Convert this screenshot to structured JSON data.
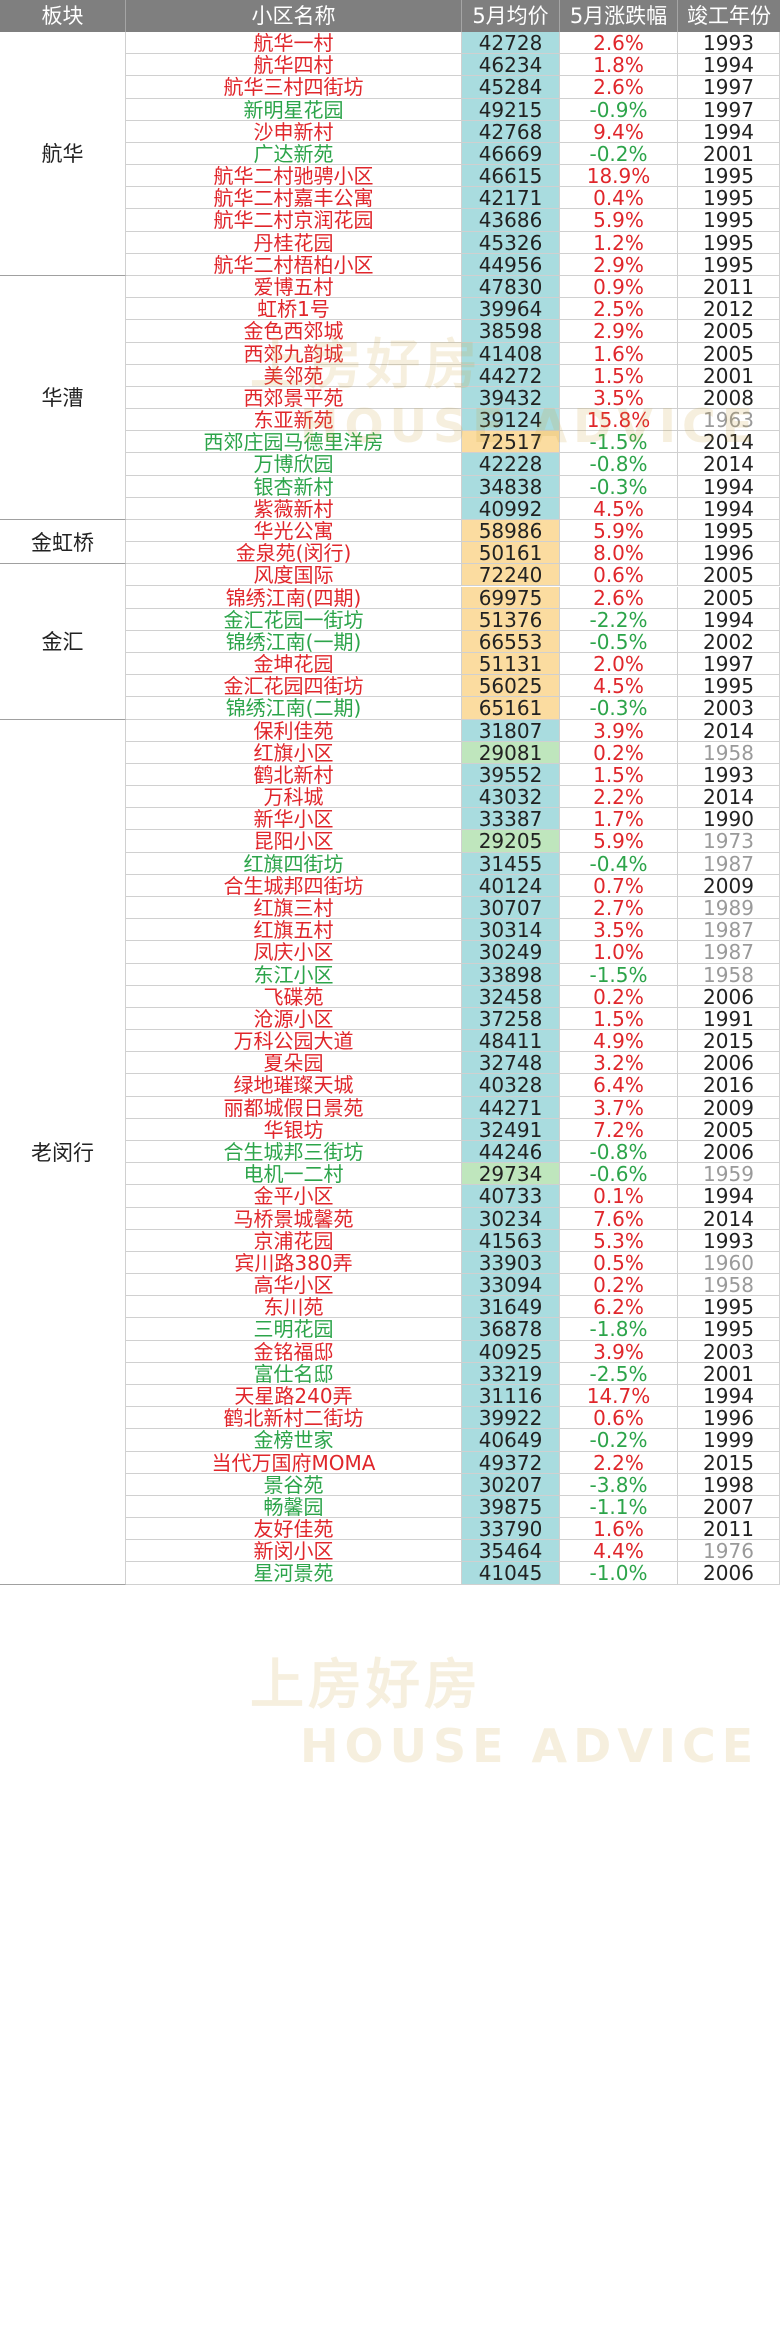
{
  "headers": [
    "板块",
    "小区名称",
    "5月均价",
    "5月涨跌幅",
    "竣工年份"
  ],
  "colors": {
    "header_bg": "#7f7f7f",
    "price_col": "#a9dcdf",
    "price_high": "#fbdca0",
    "price_low": "#bfe6bd",
    "up": "#e0262b",
    "down": "#2ca44a",
    "old_year": "#9a9a9a"
  },
  "blocks": [
    {
      "name": "航华",
      "rows": [
        {
          "name": "航华一村",
          "price": "42728",
          "change": "2.6%",
          "dir": "up",
          "year": "1993"
        },
        {
          "name": "航华四村",
          "price": "46234",
          "change": "1.8%",
          "dir": "up",
          "year": "1994"
        },
        {
          "name": "航华三村四街坊",
          "price": "45284",
          "change": "2.6%",
          "dir": "up",
          "year": "1997"
        },
        {
          "name": "新明星花园",
          "price": "49215",
          "change": "-0.9%",
          "dir": "down",
          "year": "1997"
        },
        {
          "name": "沙申新村",
          "price": "42768",
          "change": "9.4%",
          "dir": "up",
          "year": "1994"
        },
        {
          "name": "广达新苑",
          "price": "46669",
          "change": "-0.2%",
          "dir": "down",
          "year": "2001"
        },
        {
          "name": "航华二村驰骋小区",
          "price": "46615",
          "change": "18.9%",
          "dir": "up",
          "year": "1995"
        },
        {
          "name": "航华二村嘉丰公寓",
          "price": "42171",
          "change": "0.4%",
          "dir": "up",
          "year": "1995"
        },
        {
          "name": "航华二村京润花园",
          "price": "43686",
          "change": "5.9%",
          "dir": "up",
          "year": "1995"
        },
        {
          "name": "丹桂花园",
          "price": "45326",
          "change": "1.2%",
          "dir": "up",
          "year": "1995"
        },
        {
          "name": "航华二村梧柏小区",
          "price": "44956",
          "change": "2.9%",
          "dir": "up",
          "year": "1995"
        }
      ]
    },
    {
      "name": "华漕",
      "rows": [
        {
          "name": "爱博五村",
          "price": "47830",
          "change": "0.9%",
          "dir": "up",
          "year": "2011"
        },
        {
          "name": "虹桥1号",
          "price": "39964",
          "change": "2.5%",
          "dir": "up",
          "year": "2012"
        },
        {
          "name": "金色西郊城",
          "price": "38598",
          "change": "2.9%",
          "dir": "up",
          "year": "2005"
        },
        {
          "name": "西郊九韵城",
          "price": "41408",
          "change": "1.6%",
          "dir": "up",
          "year": "2005"
        },
        {
          "name": "美邻苑",
          "price": "44272",
          "change": "1.5%",
          "dir": "up",
          "year": "2001"
        },
        {
          "name": "西郊景平苑",
          "price": "39432",
          "change": "3.5%",
          "dir": "up",
          "year": "2008"
        },
        {
          "name": "东亚新苑",
          "price": "39124",
          "change": "15.8%",
          "dir": "up",
          "year": "1963"
        },
        {
          "name": "西郊庄园马德里洋房",
          "price": "72517",
          "change": "-1.5%",
          "dir": "down",
          "year": "2014",
          "hl": "high"
        },
        {
          "name": "万博欣园",
          "price": "42228",
          "change": "-0.8%",
          "dir": "down",
          "year": "2014"
        },
        {
          "name": "银杏新村",
          "price": "34838",
          "change": "-0.3%",
          "dir": "down",
          "year": "1994"
        },
        {
          "name": "紫薇新村",
          "price": "40992",
          "change": "4.5%",
          "dir": "up",
          "year": "1994"
        }
      ]
    },
    {
      "name": "金虹桥",
      "rows": [
        {
          "name": "华光公寓",
          "price": "58986",
          "change": "5.9%",
          "dir": "up",
          "year": "1995",
          "hl": "high"
        },
        {
          "name": "金泉苑(闵行)",
          "price": "50161",
          "change": "8.0%",
          "dir": "up",
          "year": "1996",
          "hl": "high"
        }
      ]
    },
    {
      "name": "金汇",
      "rows": [
        {
          "name": "风度国际",
          "price": "72240",
          "change": "0.6%",
          "dir": "up",
          "year": "2005",
          "hl": "high"
        },
        {
          "name": "锦绣江南(四期)",
          "price": "69975",
          "change": "2.6%",
          "dir": "up",
          "year": "2005",
          "hl": "high"
        },
        {
          "name": "金汇花园一街坊",
          "price": "51376",
          "change": "-2.2%",
          "dir": "down",
          "year": "1994",
          "hl": "high"
        },
        {
          "name": "锦绣江南(一期)",
          "price": "66553",
          "change": "-0.5%",
          "dir": "down",
          "year": "2002",
          "hl": "high"
        },
        {
          "name": "金坤花园",
          "price": "51131",
          "change": "2.0%",
          "dir": "up",
          "year": "1997",
          "hl": "high"
        },
        {
          "name": "金汇花园四街坊",
          "price": "56025",
          "change": "4.5%",
          "dir": "up",
          "year": "1995",
          "hl": "high"
        },
        {
          "name": "锦绣江南(二期)",
          "price": "65161",
          "change": "-0.3%",
          "dir": "down",
          "year": "2003",
          "hl": "high"
        }
      ]
    },
    {
      "name": "老闵行",
      "rows": [
        {
          "name": "保利佳苑",
          "price": "31807",
          "change": "3.9%",
          "dir": "up",
          "year": "2014"
        },
        {
          "name": "红旗小区",
          "price": "29081",
          "change": "0.2%",
          "dir": "up",
          "year": "1958",
          "hl": "low"
        },
        {
          "name": "鹤北新村",
          "price": "39552",
          "change": "1.5%",
          "dir": "up",
          "year": "1993"
        },
        {
          "name": "万科城",
          "price": "43032",
          "change": "2.2%",
          "dir": "up",
          "year": "2014"
        },
        {
          "name": "新华小区",
          "price": "33387",
          "change": "1.7%",
          "dir": "up",
          "year": "1990"
        },
        {
          "name": "昆阳小区",
          "price": "29205",
          "change": "5.9%",
          "dir": "up",
          "year": "1973",
          "hl": "low"
        },
        {
          "name": "红旗四街坊",
          "price": "31455",
          "change": "-0.4%",
          "dir": "down",
          "year": "1987"
        },
        {
          "name": "合生城邦四街坊",
          "price": "40124",
          "change": "0.7%",
          "dir": "up",
          "year": "2009"
        },
        {
          "name": "红旗三村",
          "price": "30707",
          "change": "2.7%",
          "dir": "up",
          "year": "1989"
        },
        {
          "name": "红旗五村",
          "price": "30314",
          "change": "3.5%",
          "dir": "up",
          "year": "1987"
        },
        {
          "name": "凤庆小区",
          "price": "30249",
          "change": "1.0%",
          "dir": "up",
          "year": "1987"
        },
        {
          "name": "东江小区",
          "price": "33898",
          "change": "-1.5%",
          "dir": "down",
          "year": "1958"
        },
        {
          "name": "飞碟苑",
          "price": "32458",
          "change": "0.2%",
          "dir": "up",
          "year": "2006"
        },
        {
          "name": "沧源小区",
          "price": "37258",
          "change": "1.5%",
          "dir": "up",
          "year": "1991"
        },
        {
          "name": "万科公园大道",
          "price": "48411",
          "change": "4.9%",
          "dir": "up",
          "year": "2015"
        },
        {
          "name": "夏朵园",
          "price": "32748",
          "change": "3.2%",
          "dir": "up",
          "year": "2006"
        },
        {
          "name": "绿地璀璨天城",
          "price": "40328",
          "change": "6.4%",
          "dir": "up",
          "year": "2016"
        },
        {
          "name": "丽都城假日景苑",
          "price": "44271",
          "change": "3.7%",
          "dir": "up",
          "year": "2009"
        },
        {
          "name": "华银坊",
          "price": "32491",
          "change": "7.2%",
          "dir": "up",
          "year": "2005"
        },
        {
          "name": "合生城邦三街坊",
          "price": "44246",
          "change": "-0.8%",
          "dir": "down",
          "year": "2006"
        },
        {
          "name": "电机一二村",
          "price": "29734",
          "change": "-0.6%",
          "dir": "down",
          "year": "1959",
          "hl": "low"
        },
        {
          "name": "金平小区",
          "price": "40733",
          "change": "0.1%",
          "dir": "up",
          "year": "1994"
        },
        {
          "name": "马桥景城馨苑",
          "price": "30234",
          "change": "7.6%",
          "dir": "up",
          "year": "2014"
        },
        {
          "name": "京浦花园",
          "price": "41563",
          "change": "5.3%",
          "dir": "up",
          "year": "1993"
        },
        {
          "name": "宾川路380弄",
          "price": "33903",
          "change": "0.5%",
          "dir": "up",
          "year": "1960"
        },
        {
          "name": "高华小区",
          "price": "33094",
          "change": "0.2%",
          "dir": "up",
          "year": "1958"
        },
        {
          "name": "东川苑",
          "price": "31649",
          "change": "6.2%",
          "dir": "up",
          "year": "1995"
        },
        {
          "name": "三明花园",
          "price": "36878",
          "change": "-1.8%",
          "dir": "down",
          "year": "1995"
        },
        {
          "name": "金铭福邸",
          "price": "40925",
          "change": "3.9%",
          "dir": "up",
          "year": "2003"
        },
        {
          "name": "富仕名邸",
          "price": "33219",
          "change": "-2.5%",
          "dir": "down",
          "year": "2001"
        },
        {
          "name": "天星路240弄",
          "price": "31116",
          "change": "14.7%",
          "dir": "up",
          "year": "1994"
        },
        {
          "name": "鹤北新村二街坊",
          "price": "39922",
          "change": "0.6%",
          "dir": "up",
          "year": "1996"
        },
        {
          "name": "金榜世家",
          "price": "40649",
          "change": "-0.2%",
          "dir": "down",
          "year": "1999"
        },
        {
          "name": "当代万国府MOMA",
          "price": "49372",
          "change": "2.2%",
          "dir": "up",
          "year": "2015"
        },
        {
          "name": "景谷苑",
          "price": "30207",
          "change": "-3.8%",
          "dir": "down",
          "year": "1998"
        },
        {
          "name": "畅馨园",
          "price": "39875",
          "change": "-1.1%",
          "dir": "down",
          "year": "2007"
        },
        {
          "name": "友好佳苑",
          "price": "33790",
          "change": "1.6%",
          "dir": "up",
          "year": "2011"
        },
        {
          "name": "新闵小区",
          "price": "35464",
          "change": "4.4%",
          "dir": "up",
          "year": "1976"
        },
        {
          "name": "星河景苑",
          "price": "41045",
          "change": "-1.0%",
          "dir": "down",
          "year": "2006"
        }
      ]
    }
  ],
  "watermark": {
    "brand": "上房好房",
    "latin": "HOUSE ADVICE"
  }
}
